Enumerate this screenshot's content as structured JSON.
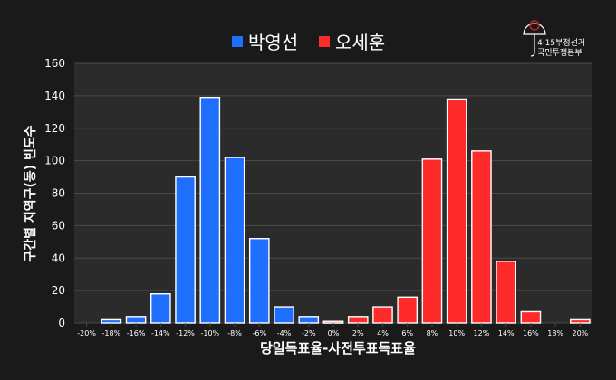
{
  "logo": {
    "lines": [
      "4·15부정선거",
      "국민투쟁본부"
    ]
  },
  "colors": {
    "background": "#1a1a1a",
    "plot_bg": "#2b2b2b",
    "grid": "#4a4a4a",
    "text": "#ffffff",
    "series_a": "#1f6fff",
    "series_b": "#ff2a2a",
    "logo_accent": "#e02020"
  },
  "chart_data": {
    "type": "bar",
    "xlabel": "당일득표율-사전투표득표율",
    "ylabel": "구간별 지역구(동) 빈도수",
    "ylim": [
      0,
      160
    ],
    "yticks": [
      0,
      20,
      40,
      60,
      80,
      100,
      120,
      140,
      160
    ],
    "xlim": [
      -21,
      21
    ],
    "xticks": [
      -20,
      -18,
      -16,
      -14,
      -12,
      -10,
      -8,
      -6,
      -4,
      -2,
      0,
      2,
      4,
      6,
      8,
      10,
      12,
      14,
      16,
      18,
      20
    ],
    "xtick_labels": [
      "-20%",
      "-18%",
      "-16%",
      "-14%",
      "-12%",
      "-10%",
      "-8%",
      "-6%",
      "-4%",
      "-2%",
      "0%",
      "2%",
      "4%",
      "6%",
      "8%",
      "10%",
      "12%",
      "14%",
      "16%",
      "18%",
      "20%"
    ],
    "legend_position": "top-center",
    "grid": true,
    "series": [
      {
        "name": "박영선",
        "color": "#1f6fff",
        "x": [
          -20,
          -18,
          -16,
          -14,
          -12,
          -10,
          -8,
          -6,
          -4,
          -2,
          0
        ],
        "values": [
          0,
          2,
          4,
          18,
          90,
          139,
          102,
          52,
          10,
          4,
          1
        ]
      },
      {
        "name": "오세훈",
        "color": "#ff2a2a",
        "x": [
          0,
          2,
          4,
          6,
          8,
          10,
          12,
          14,
          16,
          18,
          20
        ],
        "values": [
          1,
          4,
          10,
          16,
          101,
          138,
          106,
          38,
          7,
          0,
          2
        ]
      }
    ]
  }
}
